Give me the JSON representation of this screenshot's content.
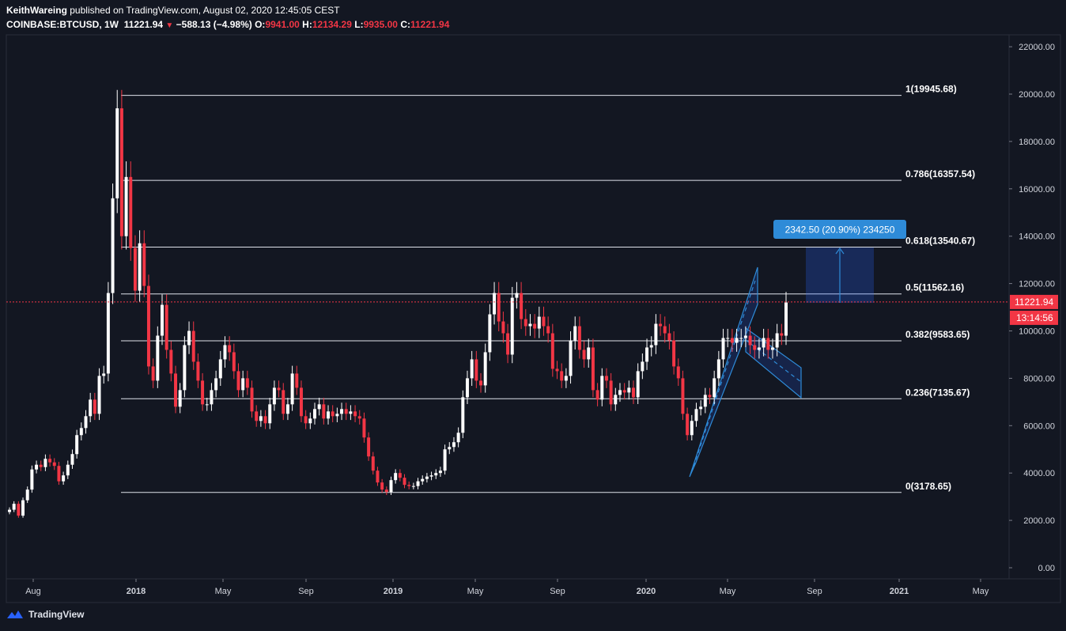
{
  "header": {
    "author": "KeithWareing",
    "published": "published on TradingView.com, August 02, 2020 12:45:05 CEST",
    "symbol": "COINBASE:BTCUSD, 1W",
    "last": "11221.94",
    "change": "−588.13 (−4.98%)",
    "o_label": "O:",
    "o": "9941.00",
    "h_label": "H:",
    "h": "12134.29",
    "l_label": "L:",
    "l": "9935.00",
    "c_label": "C:",
    "c": "11221.94"
  },
  "footer": {
    "brand": "TradingView"
  },
  "colors": {
    "up": "#ffffff",
    "down": "#f23645",
    "bg": "#131722",
    "accent": "#2962ff",
    "fib": "#ffffff"
  },
  "chart_data": {
    "type": "candlestick",
    "title": "",
    "ylim": [
      0,
      22000
    ],
    "y_ticks": [
      "22000.00",
      "20000.00",
      "18000.00",
      "16000.00",
      "14000.00",
      "12000.00",
      "10000.00",
      "8000.00",
      "6000.00",
      "4000.00",
      "2000.00",
      "0.00"
    ],
    "x_ticks": [
      "Aug",
      "2018",
      "May",
      "Sep",
      "2019",
      "May",
      "Sep",
      "2020",
      "May",
      "Sep",
      "2021",
      "May"
    ],
    "last_price": "11221.94",
    "countdown": "13:14:56",
    "fib_levels": [
      {
        "label": "1(19945.68)",
        "value": 19945.68
      },
      {
        "label": "0.786(16357.54)",
        "value": 16357.54
      },
      {
        "label": "0.618(13540.67)",
        "value": 13540.67
      },
      {
        "label": "0.5(11562.16)",
        "value": 11562.16
      },
      {
        "label": "0.382(9583.65)",
        "value": 9583.65
      },
      {
        "label": "0.236(7135.67)",
        "value": 7135.67
      },
      {
        "label": "0(3178.65)",
        "value": 3178.65
      }
    ],
    "measure_label": "2342.50 (20.90%) 234250",
    "weekly_close": [
      2450,
      2700,
      2200,
      2850,
      3300,
      4150,
      4350,
      4250,
      4600,
      4450,
      4300,
      3650,
      3900,
      4350,
      4800,
      5600,
      5900,
      6400,
      7100,
      6500,
      8100,
      8200,
      11600,
      15600,
      19400,
      14000,
      16500,
      13500,
      11700,
      13700,
      11900,
      8500,
      7900,
      9800,
      11100,
      9200,
      8200,
      6800,
      7500,
      9400,
      10000,
      8700,
      7900,
      6900,
      6900,
      7500,
      8000,
      8800,
      9400,
      9100,
      8300,
      7500,
      8000,
      7600,
      6600,
      6200,
      6400,
      6100,
      6900,
      7600,
      7500,
      6500,
      6900,
      8200,
      7600,
      6400,
      6100,
      6300,
      6700,
      6900,
      6300,
      6600,
      6400,
      6500,
      6700,
      6500,
      6600,
      6400,
      6300,
      5500,
      4700,
      4100,
      3600,
      3300,
      3200,
      3700,
      4000,
      3800,
      3500,
      3450,
      3450,
      3650,
      3750,
      3850,
      3900,
      4000,
      4100,
      5000,
      5100,
      5300,
      5700,
      7200,
      8000,
      8800,
      7900,
      7700,
      9100,
      10700,
      11600,
      10400,
      9900,
      9000,
      11400,
      11600,
      10500,
      10200,
      10300,
      10100,
      10600,
      10200,
      9900,
      8400,
      8300,
      7900,
      8100,
      9600,
      10200,
      9200,
      8800,
      9300,
      7500,
      7100,
      8100,
      7900,
      6900,
      7300,
      7500,
      7400,
      7600,
      7200,
      8300,
      8700,
      9300,
      9400,
      10300,
      10200,
      9900,
      9600,
      8500,
      8000,
      6500,
      5600,
      6200,
      6700,
      6800,
      7300,
      7200,
      8000,
      8800,
      9700,
      9700,
      9500,
      9700,
      9700,
      9800,
      9400,
      9200,
      9300,
      9700,
      9200,
      9300,
      9900,
      9800,
      11200
    ]
  }
}
